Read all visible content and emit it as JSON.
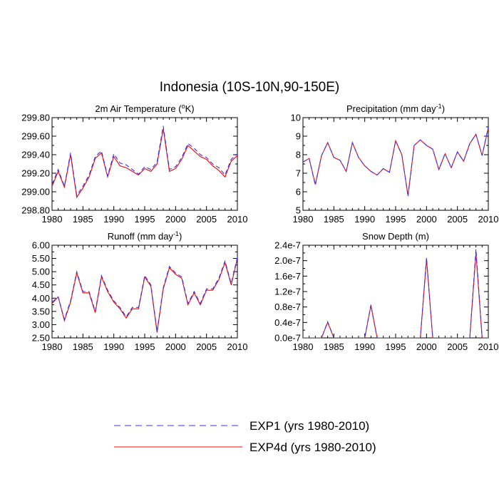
{
  "figure": {
    "title": "Indonesia (10S-10N,90-150E)"
  },
  "legend": {
    "entries": [
      {
        "label": "EXP1 (yrs 1980-2010)",
        "color": "#3333ff",
        "style": "dashed"
      },
      {
        "label": "EXP4d (yrs 1980-2010)",
        "color": "#ff0000",
        "style": "solid"
      }
    ]
  },
  "chart_data": [
    {
      "type": "line",
      "title": "2m Air Temperature (°K)",
      "title_main": "2m Air Temperature (",
      "title_sup": "o",
      "title_tail": "K)",
      "xlabel": "",
      "ylabel": "",
      "xlim": [
        1980,
        2010
      ],
      "ylim": [
        298.8,
        299.8
      ],
      "xticks": [
        "1980",
        "1985",
        "1990",
        "1995",
        "2000",
        "2005",
        "2010"
      ],
      "yticks": [
        "298.80",
        "299.00",
        "299.20",
        "299.40",
        "299.60",
        "299.80"
      ],
      "x": [
        1980,
        1981,
        1982,
        1983,
        1984,
        1985,
        1986,
        1987,
        1988,
        1989,
        1990,
        1991,
        1992,
        1993,
        1994,
        1995,
        1996,
        1997,
        1998,
        1999,
        2000,
        2001,
        2002,
        2003,
        2004,
        2005,
        2006,
        2007,
        2008,
        2009,
        2010
      ],
      "series": [
        {
          "name": "EXP1 (yrs 1980-2010)",
          "values": [
            299.08,
            299.24,
            299.06,
            299.42,
            298.96,
            299.06,
            299.18,
            299.38,
            299.44,
            299.17,
            299.41,
            299.31,
            299.29,
            299.24,
            299.19,
            299.27,
            299.24,
            299.32,
            299.71,
            299.24,
            299.27,
            299.37,
            299.52,
            299.47,
            299.4,
            299.37,
            299.3,
            299.26,
            299.18,
            299.35,
            299.41
          ]
        },
        {
          "name": "EXP4d (yrs 1980-2010)",
          "values": [
            299.06,
            299.22,
            299.05,
            299.4,
            298.94,
            299.04,
            299.16,
            299.36,
            299.42,
            299.16,
            299.38,
            299.28,
            299.26,
            299.22,
            299.18,
            299.25,
            299.22,
            299.3,
            299.68,
            299.22,
            299.25,
            299.35,
            299.5,
            299.44,
            299.38,
            299.35,
            299.28,
            299.23,
            299.16,
            299.33,
            299.39
          ]
        }
      ]
    },
    {
      "type": "line",
      "title": "Precipitation (mm day-1)",
      "title_main": "Precipitation (mm day",
      "title_sup": "-1",
      "title_tail": ")",
      "xlabel": "",
      "ylabel": "",
      "xlim": [
        1980,
        2010
      ],
      "ylim": [
        5,
        10
      ],
      "xticks": [
        "1980",
        "1985",
        "1990",
        "1995",
        "2000",
        "2005",
        "2010"
      ],
      "yticks": [
        "5",
        "6",
        "7",
        "8",
        "9",
        "10"
      ],
      "x": [
        1980,
        1981,
        1982,
        1983,
        1984,
        1985,
        1986,
        1987,
        1988,
        1989,
        1990,
        1991,
        1992,
        1993,
        1994,
        1995,
        1996,
        1997,
        1998,
        1999,
        2000,
        2001,
        2002,
        2003,
        2004,
        2005,
        2006,
        2007,
        2008,
        2009,
        2010
      ],
      "series": [
        {
          "name": "EXP1 (yrs 1980-2010)",
          "values": [
            7.6,
            7.8,
            6.35,
            7.95,
            8.65,
            7.85,
            7.7,
            7.1,
            8.65,
            7.85,
            7.4,
            7.1,
            6.9,
            7.25,
            7.05,
            8.75,
            8.0,
            5.75,
            8.5,
            8.8,
            8.5,
            8.3,
            7.2,
            8.05,
            7.3,
            8.15,
            7.65,
            8.6,
            9.1,
            7.95,
            9.5
          ]
        },
        {
          "name": "EXP4d (yrs 1980-2010)",
          "values": [
            7.6,
            7.8,
            6.4,
            7.95,
            8.65,
            7.85,
            7.7,
            7.1,
            8.65,
            7.85,
            7.4,
            7.1,
            6.9,
            7.25,
            7.05,
            8.75,
            8.0,
            5.8,
            8.5,
            8.8,
            8.5,
            8.3,
            7.2,
            8.05,
            7.3,
            8.15,
            7.65,
            8.6,
            9.1,
            7.95,
            9.45
          ]
        }
      ]
    },
    {
      "type": "line",
      "title": "Runoff (mm day-1)",
      "title_main": "Runoff (mm day",
      "title_sup": "-1",
      "title_tail": ")",
      "xlabel": "",
      "ylabel": "",
      "xlim": [
        1980,
        2010
      ],
      "ylim": [
        2.5,
        6.0
      ],
      "xticks": [
        "1980",
        "1985",
        "1990",
        "1995",
        "2000",
        "2005",
        "2010"
      ],
      "yticks": [
        "2.50",
        "3.00",
        "3.50",
        "4.00",
        "4.50",
        "5.00",
        "5.50",
        "6.00"
      ],
      "x": [
        1980,
        1981,
        1982,
        1983,
        1984,
        1985,
        1986,
        1987,
        1988,
        1989,
        1990,
        1991,
        1992,
        1993,
        1994,
        1995,
        1996,
        1997,
        1998,
        1999,
        2000,
        2001,
        2002,
        2003,
        2004,
        2005,
        2006,
        2007,
        2008,
        2009,
        2010
      ],
      "series": [
        {
          "name": "EXP1 (yrs 1980-2010)",
          "values": [
            3.85,
            4.05,
            3.2,
            3.9,
            5.0,
            4.25,
            4.25,
            3.5,
            4.85,
            4.3,
            3.9,
            3.65,
            3.3,
            3.65,
            3.65,
            4.85,
            4.5,
            2.75,
            4.4,
            5.2,
            4.95,
            4.8,
            3.8,
            4.25,
            3.8,
            4.35,
            4.35,
            4.75,
            5.4,
            4.55,
            5.55
          ]
        },
        {
          "name": "EXP4d (yrs 1980-2010)",
          "values": [
            3.8,
            4.05,
            3.15,
            3.85,
            4.95,
            4.2,
            4.2,
            3.45,
            4.8,
            4.25,
            3.85,
            3.6,
            3.25,
            3.6,
            3.6,
            4.8,
            4.45,
            2.7,
            4.35,
            5.15,
            4.9,
            4.75,
            3.75,
            4.2,
            3.75,
            4.3,
            4.3,
            4.7,
            5.35,
            4.5,
            5.5
          ]
        }
      ]
    },
    {
      "type": "line",
      "title": "Snow Depth (m)",
      "title_main": "Snow Depth (m)",
      "title_sup": "",
      "title_tail": "",
      "xlabel": "",
      "ylabel": "",
      "xlim": [
        1980,
        2010
      ],
      "ylim": [
        0,
        2.4e-07
      ],
      "xticks": [
        "1980",
        "1985",
        "1990",
        "1995",
        "2000",
        "2005",
        "2010"
      ],
      "yticks": [
        "0.0e-7",
        "0.4e-7",
        "0.8e-7",
        "1.2e-7",
        "1.6e-7",
        "2.0e-7",
        "2.4e-7"
      ],
      "x": [
        1980,
        1981,
        1982,
        1983,
        1984,
        1985,
        1986,
        1987,
        1988,
        1989,
        1990,
        1991,
        1992,
        1993,
        1994,
        1995,
        1996,
        1997,
        1998,
        1999,
        2000,
        2001,
        2002,
        2003,
        2004,
        2005,
        2006,
        2007,
        2008,
        2009,
        2010
      ],
      "series": [
        {
          "name": "EXP1 (yrs 1980-2010)",
          "values": [
            0,
            0,
            0,
            0,
            4.2e-08,
            0,
            0,
            0,
            0,
            0,
            0,
            8.6e-08,
            0,
            0,
            0,
            0,
            0,
            0,
            0,
            0,
            2.08e-07,
            0,
            0,
            0,
            0,
            0,
            0,
            0,
            2.3e-07,
            0,
            0
          ]
        },
        {
          "name": "EXP4d (yrs 1980-2010)",
          "values": [
            0,
            0,
            0,
            0,
            4e-08,
            0,
            0,
            0,
            0,
            0,
            0,
            8.4e-08,
            0,
            0,
            0,
            0,
            0,
            0,
            0,
            0,
            2.04e-07,
            0,
            0,
            0,
            0,
            0,
            0,
            0,
            2.2e-07,
            0,
            0
          ]
        }
      ]
    }
  ]
}
